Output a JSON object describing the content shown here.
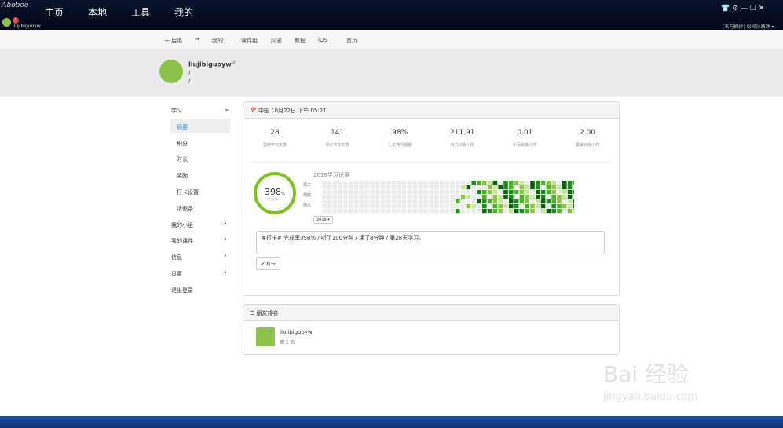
{
  "titlebar": {
    "logo": "Aboboo",
    "tabs": [
      "主页",
      "本地",
      "工具",
      "我的"
    ],
    "username": "liujibiguoyw",
    "badge": "3",
    "quote": "[名句摘抄] 松间沙路净 ▾"
  },
  "nav": {
    "back": "后退",
    "items": [
      "我的",
      "课件组",
      "问答",
      "教程",
      "iOS",
      "首页"
    ]
  },
  "profile": {
    "name": "liujibiguoyw",
    "level": "LV",
    "line1": "/",
    "line2": "/"
  },
  "sidebar": {
    "items": [
      {
        "label": "学习",
        "arrow": true
      },
      {
        "label": "摘要",
        "sub": true,
        "active": true
      },
      {
        "label": "积分",
        "sub": true
      },
      {
        "label": "时长",
        "sub": true
      },
      {
        "label": "奖励",
        "sub": true
      },
      {
        "label": "打卡设置",
        "sub": true
      },
      {
        "label": "请假条",
        "sub": true
      },
      {
        "label": "我的小组",
        "arrow": true
      },
      {
        "label": "我的课件",
        "arrow": true
      },
      {
        "label": "信息",
        "arrow": true
      },
      {
        "label": "设置",
        "arrow": true
      },
      {
        "label": "退出登录"
      }
    ]
  },
  "summary": {
    "header": "中国 10月22日 下午 05:21",
    "stats": [
      {
        "value": "28",
        "label": "坚持学习天数"
      },
      {
        "value": "141",
        "label": "累计学习天数"
      },
      {
        "value": "98%",
        "label": "七天排名超越"
      },
      {
        "value": "211.91",
        "label": "听力训练小时"
      },
      {
        "value": "0.01",
        "label": "听写训练小时"
      },
      {
        "value": "2.00",
        "label": "跟读训练小时"
      }
    ],
    "ring": {
      "value": "398",
      "unit": "%",
      "caption": "今日目标"
    },
    "heatmap": {
      "title": "2018学习记录",
      "days": [
        "周二",
        "周四",
        "周六"
      ],
      "year": "2018 ▾"
    },
    "message": "#打卡# 完成率398% / 听了100分钟 / 读了8分钟 / 第28天学习。",
    "button": "✔ 打卡"
  },
  "friends": {
    "header": "朋友排名",
    "name": "liujibiguoyw",
    "rank": "第 1 名"
  },
  "watermark": {
    "brand": "Bai 经验",
    "url": "jingyan.baidu.com"
  }
}
